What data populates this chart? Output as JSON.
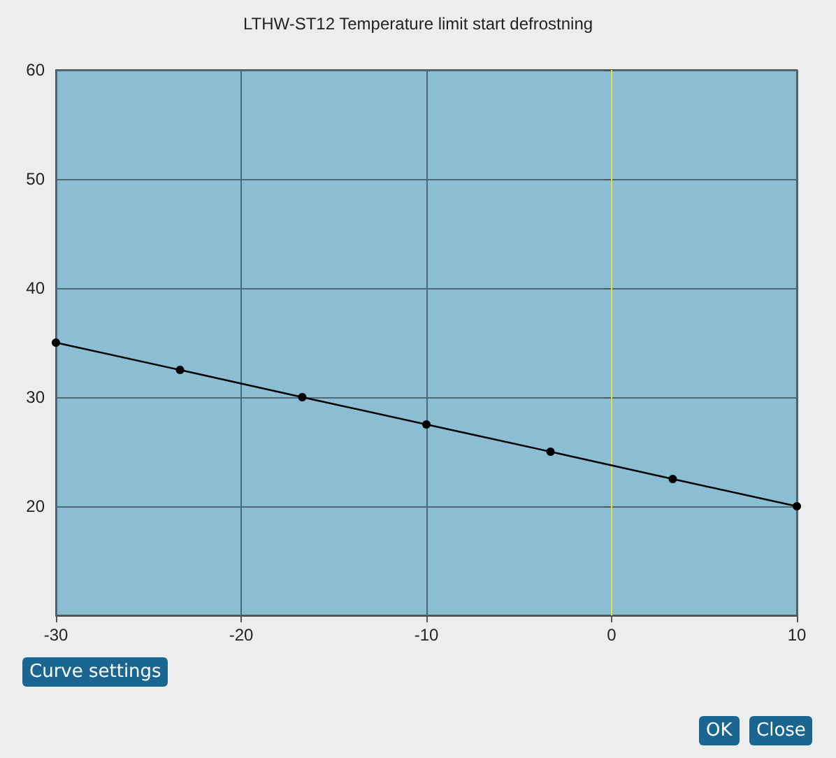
{
  "chart_data": {
    "type": "line",
    "title": "LTHW-ST12 Temperature limit start defrostning",
    "x": [
      -30,
      -23.3,
      -16.7,
      -10,
      -3.3,
      3.3,
      10
    ],
    "series": [
      {
        "color": "#000000",
        "values": [
          35,
          32.5,
          30,
          27.5,
          25,
          22.5,
          20
        ]
      }
    ],
    "xlim": [
      -30,
      10
    ],
    "xticks": [
      -30,
      -20,
      -10,
      0,
      10
    ],
    "ylim": [
      10,
      60
    ],
    "yticks": [
      20,
      30,
      40,
      50,
      60
    ],
    "grid": true,
    "marker": "circle",
    "line_style": "solid",
    "ref_lines": [
      {
        "axis": "x",
        "value": 0,
        "color": "#e0e040"
      }
    ],
    "annotations": [
      "Curve settings",
      "OK",
      "Close"
    ]
  }
}
